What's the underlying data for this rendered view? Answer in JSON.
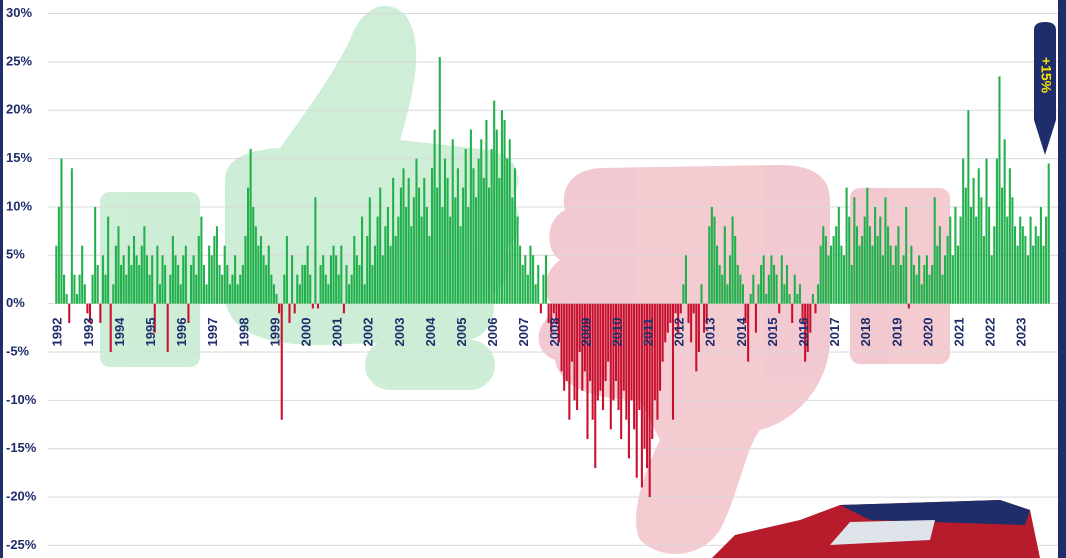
{
  "chart_data": {
    "type": "bar",
    "positive_color": "#21b04b",
    "negative_color": "#c8102e",
    "grid": true,
    "annotation": "+15%",
    "ylim": [
      -26.3,
      31.4
    ],
    "yticks": [
      {
        "value": 30,
        "label": "30%"
      },
      {
        "value": 25,
        "label": "25%"
      },
      {
        "value": 20,
        "label": "20%"
      },
      {
        "value": 15,
        "label": "15%"
      },
      {
        "value": 10,
        "label": "10%"
      },
      {
        "value": 5,
        "label": "5%"
      },
      {
        "value": 0,
        "label": "0%"
      },
      {
        "value": -5,
        "label": "-5%"
      },
      {
        "value": -10,
        "label": "-10%"
      },
      {
        "value": -15,
        "label": "-15%"
      },
      {
        "value": -20,
        "label": "-20%"
      },
      {
        "value": -25,
        "label": "-25%"
      }
    ],
    "categories": [
      "1992",
      null,
      null,
      null,
      null,
      null,
      null,
      null,
      null,
      null,
      null,
      null,
      "1993",
      null,
      null,
      null,
      null,
      null,
      null,
      null,
      null,
      null,
      null,
      null,
      "1994",
      null,
      null,
      null,
      null,
      null,
      null,
      null,
      null,
      null,
      null,
      null,
      "1995",
      null,
      null,
      null,
      null,
      null,
      null,
      null,
      null,
      null,
      null,
      null,
      "1996",
      null,
      null,
      null,
      null,
      null,
      null,
      null,
      null,
      null,
      null,
      null,
      "1997",
      null,
      null,
      null,
      null,
      null,
      null,
      null,
      null,
      null,
      null,
      null,
      "1998",
      null,
      null,
      null,
      null,
      null,
      null,
      null,
      null,
      null,
      null,
      null,
      "1999",
      null,
      null,
      null,
      null,
      null,
      null,
      null,
      null,
      null,
      null,
      null,
      "2000",
      null,
      null,
      null,
      null,
      null,
      null,
      null,
      null,
      null,
      null,
      null,
      "2001",
      null,
      null,
      null,
      null,
      null,
      null,
      null,
      null,
      null,
      null,
      null,
      "2002",
      null,
      null,
      null,
      null,
      null,
      null,
      null,
      null,
      null,
      null,
      null,
      "2003",
      null,
      null,
      null,
      null,
      null,
      null,
      null,
      null,
      null,
      null,
      null,
      "2004",
      null,
      null,
      null,
      null,
      null,
      null,
      null,
      null,
      null,
      null,
      null,
      "2005",
      null,
      null,
      null,
      null,
      null,
      null,
      null,
      null,
      null,
      null,
      null,
      "2006",
      null,
      null,
      null,
      null,
      null,
      null,
      null,
      null,
      null,
      null,
      null,
      "2007",
      null,
      null,
      null,
      null,
      null,
      null,
      null,
      null,
      null,
      null,
      null,
      "2008",
      null,
      null,
      null,
      null,
      null,
      null,
      null,
      null,
      null,
      null,
      null,
      "2009",
      null,
      null,
      null,
      null,
      null,
      null,
      null,
      null,
      null,
      null,
      null,
      "2010",
      null,
      null,
      null,
      null,
      null,
      null,
      null,
      null,
      null,
      null,
      null,
      "2011",
      null,
      null,
      null,
      null,
      null,
      null,
      null,
      null,
      null,
      null,
      null,
      "2012",
      null,
      null,
      null,
      null,
      null,
      null,
      null,
      null,
      null,
      null,
      null,
      "2013",
      null,
      null,
      null,
      null,
      null,
      null,
      null,
      null,
      null,
      null,
      null,
      "2014",
      null,
      null,
      null,
      null,
      null,
      null,
      null,
      null,
      null,
      null,
      null,
      "2015",
      null,
      null,
      null,
      null,
      null,
      null,
      null,
      null,
      null,
      null,
      null,
      "2016",
      null,
      null,
      null,
      null,
      null,
      null,
      null,
      null,
      null,
      null,
      null,
      "2017",
      null,
      null,
      null,
      null,
      null,
      null,
      null,
      null,
      null,
      null,
      null,
      "2018",
      null,
      null,
      null,
      null,
      null,
      null,
      null,
      null,
      null,
      null,
      null,
      "2019",
      null,
      null,
      null,
      null,
      null,
      null,
      null,
      null,
      null,
      null,
      null,
      "2020",
      null,
      null,
      null,
      null,
      null,
      null,
      null,
      null,
      null,
      null,
      null,
      "2021",
      null,
      null,
      null,
      null,
      null,
      null,
      null,
      null,
      null,
      null,
      null,
      "2022",
      null,
      null,
      null,
      null,
      null,
      null,
      null,
      null,
      null,
      null,
      null,
      "2023",
      null,
      null,
      null,
      null,
      null,
      null,
      null,
      null,
      null,
      null,
      null
    ],
    "values": [
      6,
      10,
      15,
      3,
      1,
      -2,
      14,
      3,
      1,
      3,
      6,
      2,
      -1,
      -2,
      3,
      10,
      4,
      -2,
      5,
      3,
      9,
      -5,
      2,
      6,
      8,
      4,
      5,
      3,
      6,
      4,
      7,
      5,
      4,
      6,
      8,
      5,
      3,
      5,
      -3,
      6,
      2,
      5,
      4,
      -5,
      3,
      7,
      5,
      4,
      2,
      5,
      6,
      -2,
      4,
      5,
      3,
      7,
      9,
      4,
      2,
      6,
      5,
      7,
      8,
      4,
      3,
      6,
      4,
      2,
      3,
      5,
      2,
      3,
      4,
      7,
      12,
      16,
      10,
      8,
      6,
      7,
      5,
      4,
      6,
      3,
      2,
      1,
      -1,
      -12,
      3,
      7,
      -2,
      5,
      -1,
      3,
      2,
      4,
      4,
      6,
      3,
      -0.5,
      11,
      -0.5,
      4,
      5,
      3,
      2,
      5,
      6,
      5,
      3,
      6,
      -1,
      4,
      2,
      3,
      7,
      5,
      4,
      9,
      2,
      7,
      11,
      4,
      6,
      9,
      12,
      5,
      8,
      10,
      6,
      13,
      7,
      9,
      12,
      14,
      10,
      13,
      8,
      11,
      15,
      12,
      9,
      13,
      10,
      7,
      14,
      18,
      12,
      25.5,
      10,
      15,
      13,
      9,
      17,
      11,
      14,
      8,
      12,
      16,
      10,
      18,
      14,
      11,
      15,
      17,
      13,
      19,
      12,
      16,
      21,
      18,
      13,
      20,
      19,
      15,
      17,
      11,
      14,
      9,
      6,
      4,
      5,
      3,
      6,
      5,
      2,
      4,
      -1,
      3,
      5,
      -2,
      -3,
      -1,
      -2,
      -4,
      -7,
      -9,
      -8,
      -12,
      -6,
      -10,
      -11,
      -5,
      -9,
      -7,
      -14,
      -8,
      -12,
      -17,
      -10,
      -9,
      -11,
      -8,
      -6,
      -13,
      -10,
      -8,
      -11,
      -14,
      -9,
      -12,
      -16,
      -10,
      -13,
      -18,
      -11,
      -19,
      -15,
      -17,
      -20,
      -14,
      -10,
      -12,
      -9,
      -6,
      -4,
      -3,
      -2,
      -12,
      -1,
      -3,
      -1,
      2,
      5,
      -2,
      -4,
      -1,
      -7,
      -5,
      2,
      -3,
      -2,
      8,
      10,
      9,
      6,
      4,
      3,
      8,
      2,
      5,
      9,
      7,
      4,
      3,
      2,
      -2,
      -6,
      1,
      3,
      -3,
      2,
      4,
      5,
      1,
      3,
      5,
      4,
      3,
      -1,
      5,
      2,
      4,
      1,
      -2,
      3,
      1,
      2,
      -2,
      -6,
      -5,
      -3,
      1,
      -1,
      2,
      6,
      8,
      7,
      5,
      6,
      7,
      8,
      10,
      6,
      5,
      12,
      9,
      4,
      11,
      8,
      6,
      7,
      9,
      12,
      8,
      6,
      10,
      7,
      9,
      5,
      11,
      8,
      6,
      4,
      6,
      8,
      4,
      5,
      10,
      -0.5,
      6,
      4,
      3,
      5,
      2,
      4,
      5,
      3,
      4,
      11,
      6,
      8,
      3,
      5,
      7,
      9,
      5,
      10,
      6,
      9,
      15,
      12,
      20,
      10,
      13,
      9,
      14,
      11,
      7,
      15,
      10,
      5,
      8,
      15,
      23.5,
      12,
      17,
      9,
      14,
      11,
      8,
      6,
      9,
      8,
      7,
      5,
      9,
      6,
      8,
      7,
      10,
      6,
      9,
      14.5
    ]
  }
}
